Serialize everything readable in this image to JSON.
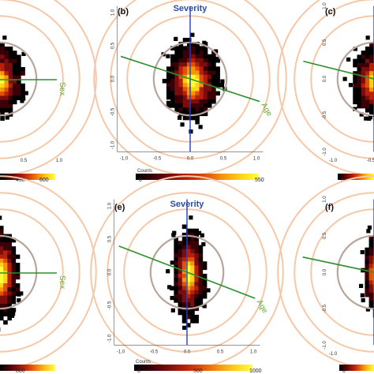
{
  "figure": {
    "colorbar_title": "Counts",
    "colors": {
      "ring": "#f6c8a8",
      "inner_ring": "#b9a59a",
      "severity_axis": "#1f3fbf",
      "severity_label": "#2e4d9c",
      "age_sex_axis": "#2f8f2f",
      "age_sex_label": "#6aaa3a",
      "cmap": [
        "#000000",
        "#3a0008",
        "#7a0d0d",
        "#b8200c",
        "#e0520a",
        "#f4960c",
        "#ffd21a",
        "#ffff3a"
      ]
    }
  },
  "chart_data": [
    {
      "type": "heatmap",
      "panel": "a",
      "label": "",
      "axis_labels": [
        {
          "text": "Sex"
        }
      ],
      "x_ticks": [
        "0.5",
        "1.0"
      ],
      "y_ticks": [],
      "colorbar": {
        "ticks": [
          "450",
          "600"
        ]
      },
      "visible_cropped": "left"
    },
    {
      "type": "heatmap",
      "panel": "b",
      "label": "(b)",
      "axis_labels": [
        {
          "text": "Severity"
        },
        {
          "text": "Age"
        }
      ],
      "x_ticks": [
        "-1.0",
        "-0.5",
        "0.0",
        "0.5",
        "1.0"
      ],
      "y_ticks": [
        "1.0",
        "0.5",
        "0.0",
        "-0.5",
        "-1.0"
      ],
      "colorbar": {
        "ticks": [
          "0",
          "550"
        ]
      },
      "xlim": [
        -1.0,
        1.0
      ],
      "ylim": [
        -1.0,
        1.0
      ],
      "rings": [
        0.45,
        0.7,
        0.95,
        1.2
      ]
    },
    {
      "type": "heatmap",
      "panel": "c",
      "label": "(c)",
      "axis_labels": [],
      "x_ticks": [
        "-1.0",
        "-0.5"
      ],
      "y_ticks": [
        "1.0",
        "0.5",
        "0.0",
        "-0.5",
        "-1.0"
      ],
      "colorbar": {
        "ticks": [
          "0"
        ]
      },
      "visible_cropped": "right"
    },
    {
      "type": "heatmap",
      "panel": "d",
      "label": "",
      "axis_labels": [
        {
          "text": "Sex"
        }
      ],
      "x_ticks": [],
      "y_ticks": [],
      "colorbar": {
        "ticks": [
          "800"
        ]
      },
      "visible_cropped": "left"
    },
    {
      "type": "heatmap",
      "panel": "e",
      "label": "(e)",
      "axis_labels": [
        {
          "text": "Severity"
        },
        {
          "text": "Age"
        }
      ],
      "x_ticks": [
        "-1.0",
        "-0.5",
        "0.0",
        "0.5",
        "1.0"
      ],
      "y_ticks": [
        "1.0",
        "0.5",
        "0.0",
        "-0.5",
        "-1.0"
      ],
      "colorbar": {
        "ticks": [
          "0",
          "500",
          "1000"
        ]
      },
      "xlim": [
        -1.0,
        1.0
      ],
      "ylim": [
        -1.0,
        1.0
      ],
      "rings": [
        0.45,
        0.7,
        0.95,
        1.2
      ]
    },
    {
      "type": "heatmap",
      "panel": "f",
      "label": "(f)",
      "axis_labels": [],
      "x_ticks": [
        "-1.0"
      ],
      "y_ticks": [
        "1.0",
        "0.5",
        "0.0",
        "-0.5",
        "-1.0"
      ],
      "colorbar": {
        "ticks": [
          "0"
        ]
      },
      "visible_cropped": "right"
    }
  ]
}
